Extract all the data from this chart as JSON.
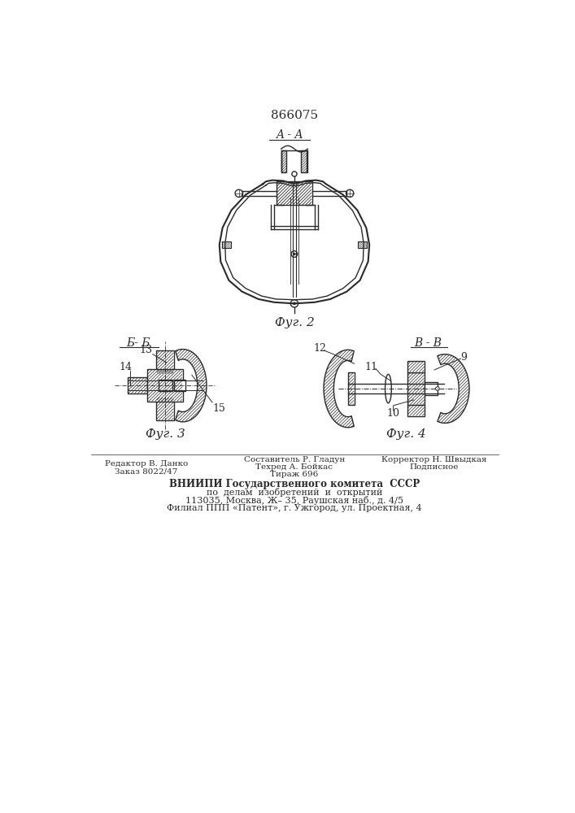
{
  "patent_number": "866075",
  "fig2_label": "A - A",
  "fig2_caption": "Фуг. 2",
  "fig3_label": "Б- Б",
  "fig3_caption": "Фуг. 3",
  "fig4_label": "В - В",
  "fig4_caption": "Фуг. 4",
  "bg_color": "#ffffff",
  "line_color": "#2a2a2a",
  "footer_line1_left": "Редактор В. Данко",
  "footer_line2_left": "Заказ 8022/47",
  "footer_line1_center": "Составитель Р. Гладун",
  "footer_line2_center": "Техред А. Бойкас",
  "footer_line3_center": "Тираж 696",
  "footer_line1_right": "Корректор Н. Швыдкая",
  "footer_line2_right": "Подписное",
  "footer_vniiipi": "ВНИИПИ Государственного комитета  СССР",
  "footer_po": "по  делам  изобретений  и  открытий",
  "footer_addr1": "113035, Москва, Ж– 35, Раушская наб., д. 4/5",
  "footer_addr2": "Филиал ППП «Патент», г. Ужгород, ул. Проектная, 4"
}
